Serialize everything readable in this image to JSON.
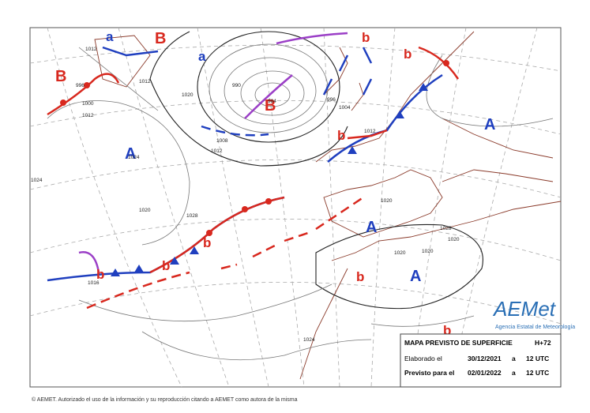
{
  "pressure_centers": [
    {
      "label": "a",
      "color": "#1f3fbf"
    },
    {
      "label": "B",
      "color": "#d8281e"
    },
    {
      "label": "a",
      "color": "#1f3fbf"
    },
    {
      "label": "B",
      "color": "#d8281e"
    },
    {
      "label": "A",
      "color": "#1f3fbf"
    },
    {
      "label": "B",
      "color": "#d8281e"
    },
    {
      "label": "b",
      "color": "#d8281e"
    },
    {
      "label": "b",
      "color": "#d8281e"
    },
    {
      "label": "A",
      "color": "#1f3fbf"
    },
    {
      "label": "b",
      "color": "#d8281e"
    },
    {
      "label": "A",
      "color": "#1f3fbf"
    },
    {
      "label": "b",
      "color": "#d8281e"
    },
    {
      "label": "b",
      "color": "#d8281e"
    },
    {
      "label": "b",
      "color": "#d8281e"
    },
    {
      "label": "A",
      "color": "#1f3fbf"
    },
    {
      "label": "b",
      "color": "#d8281e"
    },
    {
      "label": "b",
      "color": "#d8281e"
    }
  ],
  "isobar_labels": [
    "1012",
    "1012",
    "996",
    "1000",
    "1012",
    "1020",
    "1024",
    "1008",
    "1012",
    "990",
    "984",
    "996",
    "1004",
    "1012",
    "1024",
    "1020",
    "1028",
    "1020",
    "1028",
    "1020",
    "1016",
    "1024",
    "1020",
    "1020"
  ],
  "info_box": {
    "title": "MAPA PREVISTO DE SUPERFICIE",
    "step": "H+72",
    "made_label": "Elaborado el",
    "made_date": "30/12/2021",
    "made_at": "a",
    "made_time": "12 UTC",
    "valid_label": "Previsto para el",
    "valid_date": "02/01/2022",
    "valid_at": "a",
    "valid_time": "12 UTC"
  },
  "logo": {
    "name": "AEMet",
    "subtitle": "Agencia Estatal de Meteorología"
  },
  "footer": "© AEMET. Autorizado el uso de la información y su reproducción citando a AEMET como autora de la misma"
}
